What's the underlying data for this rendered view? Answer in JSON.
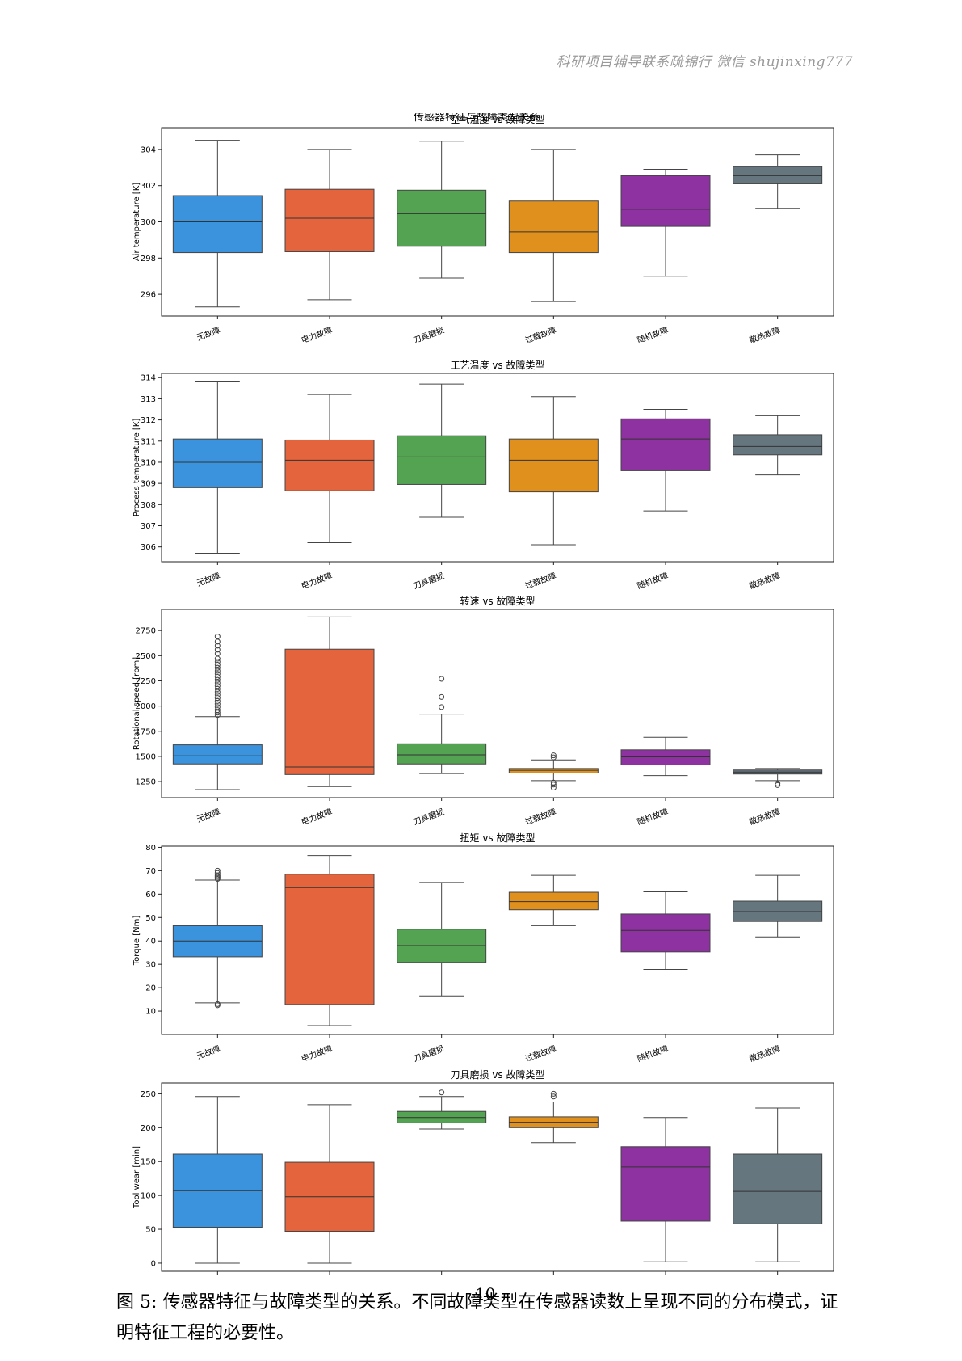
{
  "page": {
    "header_text": "科研项目辅导联系疏锦行 微信 shujinxing777",
    "page_number": "10",
    "caption": "图 5: 传感器特征与故障类型的关系。不同故障类型在传感器读数上呈现不同的分布模式，证明特征工程的必要性。"
  },
  "figure": {
    "suptitle": "传感器特征与故障类型关系"
  },
  "chart_data": [
    {
      "type": "box",
      "title": "空气温度 vs 故障类型",
      "ylabel": "Air temperature [K]",
      "categories": [
        "无故障",
        "电力故障",
        "刀具磨损",
        "过载故障",
        "随机故障",
        "散热故障"
      ],
      "colors": [
        "#3a93dc",
        "#e4643d",
        "#54a353",
        "#e0901d",
        "#8e32a2",
        "#65767f"
      ],
      "ylim": [
        294.8,
        305.2
      ],
      "yticks": [
        296,
        298,
        300,
        302,
        304
      ],
      "boxes": [
        {
          "q1": 298.3,
          "median": 300.0,
          "q3": 301.45,
          "whislo": 295.3,
          "whishi": 304.5,
          "fliers": []
        },
        {
          "q1": 298.35,
          "median": 300.2,
          "q3": 301.8,
          "whislo": 295.7,
          "whishi": 304.0,
          "fliers": []
        },
        {
          "q1": 298.65,
          "median": 300.45,
          "q3": 301.75,
          "whislo": 296.9,
          "whishi": 304.45,
          "fliers": []
        },
        {
          "q1": 298.3,
          "median": 299.45,
          "q3": 301.15,
          "whislo": 295.6,
          "whishi": 304.0,
          "fliers": []
        },
        {
          "q1": 299.75,
          "median": 300.7,
          "q3": 302.55,
          "whislo": 297.0,
          "whishi": 302.9,
          "fliers": []
        },
        {
          "q1": 302.1,
          "median": 302.55,
          "q3": 303.05,
          "whislo": 300.75,
          "whishi": 303.7,
          "fliers": []
        }
      ]
    },
    {
      "type": "box",
      "title": "工艺温度 vs 故障类型",
      "ylabel": "Process temperature [K]",
      "categories": [
        "无故障",
        "电力故障",
        "刀具磨损",
        "过载故障",
        "随机故障",
        "散热故障"
      ],
      "colors": [
        "#3a93dc",
        "#e4643d",
        "#54a353",
        "#e0901d",
        "#8e32a2",
        "#65767f"
      ],
      "ylim": [
        305.3,
        314.2
      ],
      "yticks": [
        306,
        307,
        308,
        309,
        310,
        311,
        312,
        313,
        314
      ],
      "boxes": [
        {
          "q1": 308.8,
          "median": 310.0,
          "q3": 311.1,
          "whislo": 305.7,
          "whishi": 313.8,
          "fliers": []
        },
        {
          "q1": 308.65,
          "median": 310.1,
          "q3": 311.05,
          "whislo": 306.2,
          "whishi": 313.2,
          "fliers": []
        },
        {
          "q1": 308.95,
          "median": 310.25,
          "q3": 311.25,
          "whislo": 307.4,
          "whishi": 313.7,
          "fliers": []
        },
        {
          "q1": 308.6,
          "median": 310.1,
          "q3": 311.1,
          "whislo": 306.1,
          "whishi": 313.1,
          "fliers": []
        },
        {
          "q1": 309.6,
          "median": 311.1,
          "q3": 312.05,
          "whislo": 307.7,
          "whishi": 312.5,
          "fliers": []
        },
        {
          "q1": 310.35,
          "median": 310.75,
          "q3": 311.3,
          "whislo": 309.4,
          "whishi": 312.2,
          "fliers": []
        }
      ]
    },
    {
      "type": "box",
      "title": "转速 vs 故障类型",
      "ylabel": "Rotational speed [rpm]",
      "categories": [
        "无故障",
        "电力故障",
        "刀具磨损",
        "过载故障",
        "随机故障",
        "散热故障"
      ],
      "colors": [
        "#3a93dc",
        "#e4643d",
        "#54a353",
        "#e0901d",
        "#8e32a2",
        "#65767f"
      ],
      "ylim": [
        1090,
        2960
      ],
      "yticks": [
        1250,
        1500,
        1750,
        2000,
        2250,
        2500,
        2750
      ],
      "boxes": [
        {
          "q1": 1425,
          "median": 1505,
          "q3": 1615,
          "whislo": 1170,
          "whishi": 1895,
          "fliers": [
            1910,
            1935,
            1960,
            1990,
            2020,
            2050,
            2080,
            2110,
            2140,
            2170,
            2200,
            2230,
            2260,
            2290,
            2320,
            2350,
            2380,
            2410,
            2440,
            2470,
            2520,
            2560,
            2600,
            2640,
            2690
          ]
        },
        {
          "q1": 1320,
          "median": 1395,
          "q3": 2565,
          "whislo": 1200,
          "whishi": 2885,
          "fliers": []
        },
        {
          "q1": 1425,
          "median": 1515,
          "q3": 1625,
          "whislo": 1330,
          "whishi": 1920,
          "fliers": [
            1990,
            2090,
            2270
          ]
        },
        {
          "q1": 1335,
          "median": 1362,
          "q3": 1380,
          "whislo": 1260,
          "whishi": 1465,
          "fliers": [
            1190,
            1220,
            1240,
            1490,
            1510
          ]
        },
        {
          "q1": 1415,
          "median": 1495,
          "q3": 1565,
          "whislo": 1310,
          "whishi": 1690,
          "fliers": []
        },
        {
          "q1": 1325,
          "median": 1345,
          "q3": 1365,
          "whislo": 1260,
          "whishi": 1380,
          "fliers": [
            1215,
            1230
          ]
        }
      ]
    },
    {
      "type": "box",
      "title": "扭矩 vs 故障类型",
      "ylabel": "Torque [Nm]",
      "categories": [
        "无故障",
        "电力故障",
        "刀具磨损",
        "过载故障",
        "随机故障",
        "散热故障"
      ],
      "colors": [
        "#3a93dc",
        "#e4643d",
        "#54a353",
        "#e0901d",
        "#8e32a2",
        "#65767f"
      ],
      "ylim": [
        0,
        80.5
      ],
      "yticks": [
        10,
        20,
        30,
        40,
        50,
        60,
        70,
        80
      ],
      "boxes": [
        {
          "q1": 33.2,
          "median": 40.0,
          "q3": 46.5,
          "whislo": 13.5,
          "whishi": 66.0,
          "fliers": [
            12.5,
            13.0,
            66.5,
            67.0,
            67.5,
            68.0,
            69.0,
            70.0
          ]
        },
        {
          "q1": 12.8,
          "median": 62.8,
          "q3": 68.5,
          "whislo": 3.8,
          "whishi": 76.5,
          "fliers": []
        },
        {
          "q1": 30.8,
          "median": 38.0,
          "q3": 45.0,
          "whislo": 16.5,
          "whishi": 65.0,
          "fliers": []
        },
        {
          "q1": 53.3,
          "median": 56.8,
          "q3": 60.8,
          "whislo": 46.5,
          "whishi": 68.0,
          "fliers": []
        },
        {
          "q1": 35.3,
          "median": 44.5,
          "q3": 51.5,
          "whislo": 27.8,
          "whishi": 61.0,
          "fliers": []
        },
        {
          "q1": 48.3,
          "median": 52.5,
          "q3": 57.0,
          "whislo": 41.7,
          "whishi": 68.0,
          "fliers": []
        }
      ]
    },
    {
      "type": "box",
      "title": "刀具磨损 vs 故障类型",
      "ylabel": "Tool wear [min]",
      "categories": [
        "无故障",
        "电力故障",
        "刀具磨损",
        "过载故障",
        "随机故障",
        "散热故障"
      ],
      "colors": [
        "#3a93dc",
        "#e4643d",
        "#54a353",
        "#e0901d",
        "#8e32a2",
        "#65767f"
      ],
      "ylim": [
        -12,
        266
      ],
      "yticks": [
        0,
        50,
        100,
        150,
        200,
        250
      ],
      "boxes": [
        {
          "q1": 53,
          "median": 107,
          "q3": 161,
          "whislo": 0,
          "whishi": 246,
          "fliers": []
        },
        {
          "q1": 47,
          "median": 98,
          "q3": 149,
          "whislo": 0,
          "whishi": 234,
          "fliers": []
        },
        {
          "q1": 207,
          "median": 215,
          "q3": 224,
          "whislo": 198,
          "whishi": 246,
          "fliers": [
            252
          ]
        },
        {
          "q1": 200,
          "median": 208,
          "q3": 216,
          "whislo": 178,
          "whishi": 238,
          "fliers": [
            246,
            250
          ]
        },
        {
          "q1": 62,
          "median": 142,
          "q3": 172,
          "whislo": 2,
          "whishi": 215,
          "fliers": []
        },
        {
          "q1": 58,
          "median": 106,
          "q3": 161,
          "whislo": 2,
          "whishi": 229,
          "fliers": []
        }
      ]
    }
  ]
}
